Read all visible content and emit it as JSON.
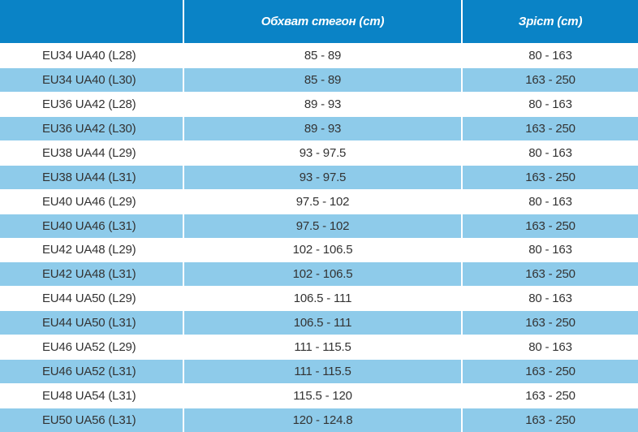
{
  "table": {
    "headers": [
      "Обхват стегон (cm)",
      "Зріст (cm)"
    ],
    "rows": [
      [
        "EU34 UA40 (L28)",
        "85 - 89",
        "80 - 163"
      ],
      [
        "EU34 UA40 (L30)",
        "85 - 89",
        "163 - 250"
      ],
      [
        "EU36 UA42 (L28)",
        "89 - 93",
        "80 - 163"
      ],
      [
        "EU36 UA42 (L30)",
        "89 - 93",
        "163 - 250"
      ],
      [
        "EU38 UA44 (L29)",
        "93 - 97.5",
        "80 - 163"
      ],
      [
        "EU38 UA44 (L31)",
        "93 - 97.5",
        "163 - 250"
      ],
      [
        "EU40 UA46 (L29)",
        "97.5 - 102",
        "80 - 163"
      ],
      [
        "EU40 UA46 (L31)",
        "97.5 - 102",
        "163 - 250"
      ],
      [
        "EU42 UA48 (L29)",
        "102 - 106.5",
        "80 - 163"
      ],
      [
        "EU42 UA48 (L31)",
        "102 - 106.5",
        "163 - 250"
      ],
      [
        "EU44 UA50 (L29)",
        "106.5 - 111",
        "80 - 163"
      ],
      [
        "EU44 UA50 (L31)",
        "106.5 - 111",
        "163 - 250"
      ],
      [
        "EU46 UA52 (L29)",
        "111 - 115.5",
        "80 - 163"
      ],
      [
        "EU46 UA52 (L31)",
        "111 - 115.5",
        "163 - 250"
      ],
      [
        "EU48 UA54 (L31)",
        "115.5 - 120",
        "163 - 250"
      ],
      [
        "EU50 UA56 (L31)",
        "120 - 124.8",
        "163 - 250"
      ]
    ]
  }
}
